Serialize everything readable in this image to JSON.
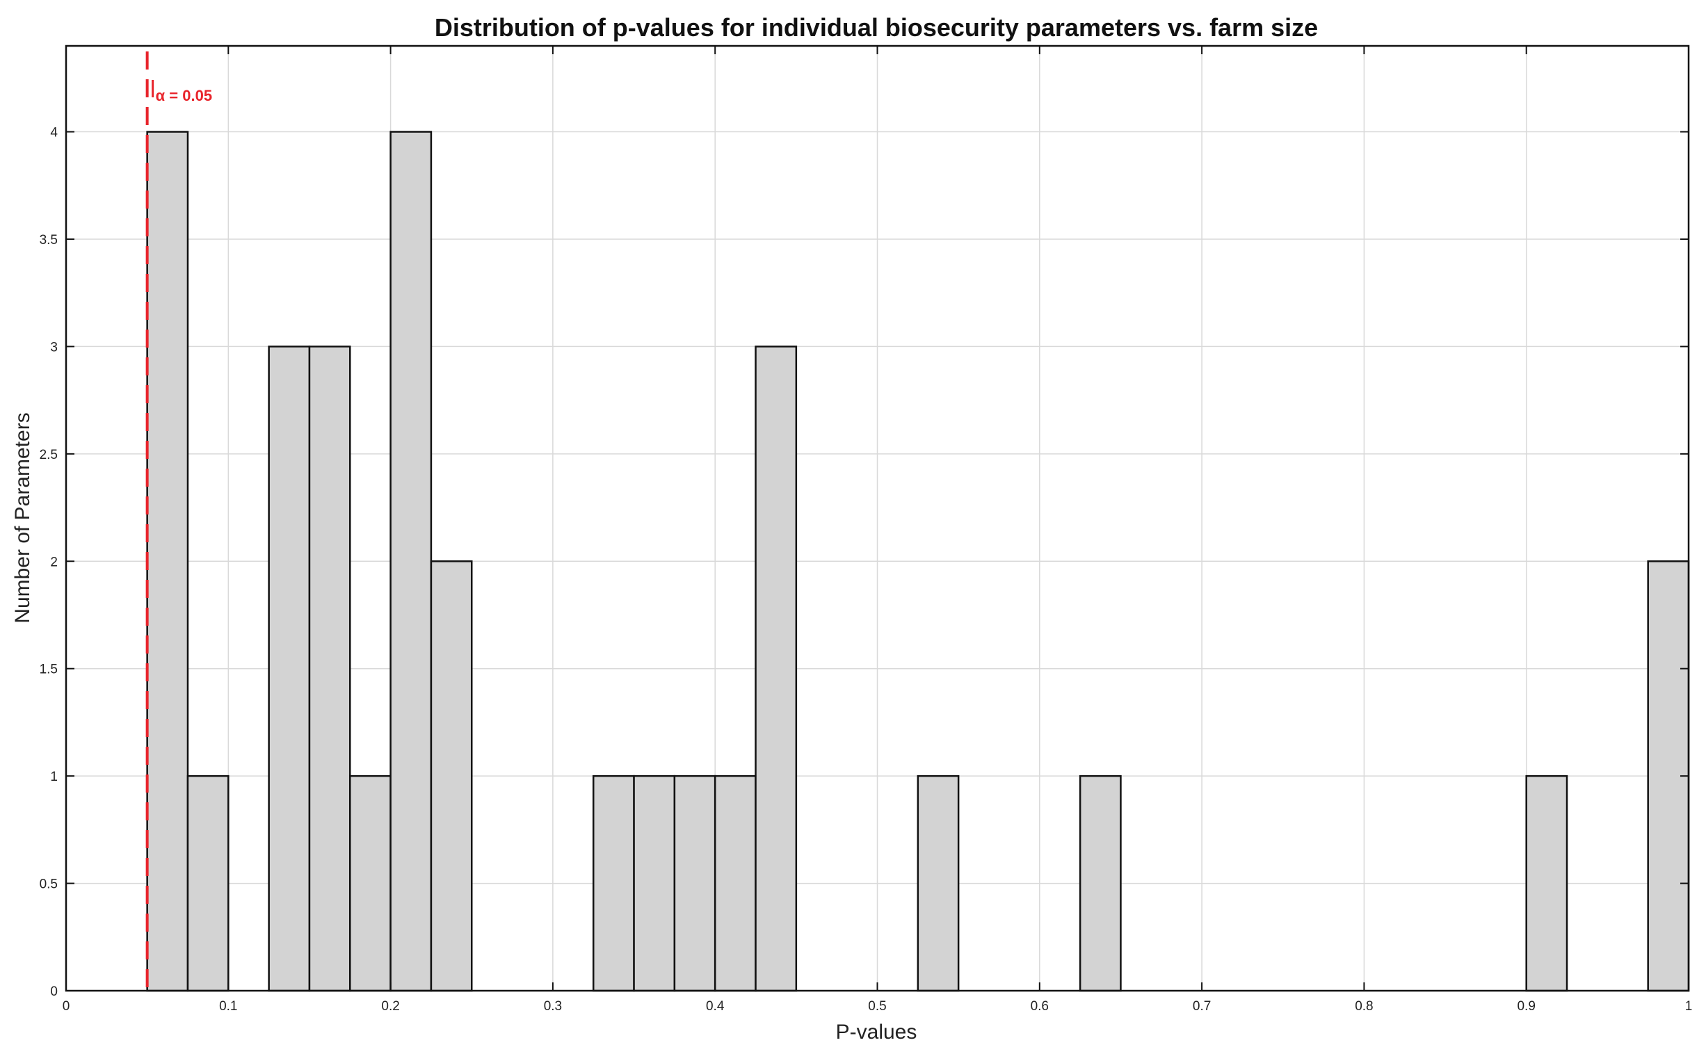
{
  "chart_data": {
    "type": "bar",
    "title": "Distribution of p-values for individual biosecurity parameters vs. farm size",
    "xlabel": "P-values",
    "ylabel": "Number of Parameters",
    "xlim": [
      0,
      1
    ],
    "ylim": [
      0,
      4.4
    ],
    "grid": true,
    "bin_width": 0.025,
    "bar_color": "#d3d3d3",
    "edge_color": "#111111",
    "x_ticks": [
      "0",
      "0.1",
      "0.2",
      "0.3",
      "0.4",
      "0.5",
      "0.6",
      "0.7",
      "0.8",
      "0.9",
      "1"
    ],
    "y_ticks": [
      "0",
      "0.5",
      "1",
      "1.5",
      "2",
      "2.5",
      "3",
      "3.5",
      "4"
    ],
    "bins": [
      {
        "start": 0.05,
        "end": 0.075,
        "count": 4
      },
      {
        "start": 0.075,
        "end": 0.1,
        "count": 1
      },
      {
        "start": 0.125,
        "end": 0.15,
        "count": 3
      },
      {
        "start": 0.15,
        "end": 0.175,
        "count": 3
      },
      {
        "start": 0.175,
        "end": 0.2,
        "count": 1
      },
      {
        "start": 0.2,
        "end": 0.225,
        "count": 4
      },
      {
        "start": 0.225,
        "end": 0.25,
        "count": 2
      },
      {
        "start": 0.325,
        "end": 0.35,
        "count": 1
      },
      {
        "start": 0.35,
        "end": 0.375,
        "count": 1
      },
      {
        "start": 0.375,
        "end": 0.4,
        "count": 1
      },
      {
        "start": 0.4,
        "end": 0.425,
        "count": 1
      },
      {
        "start": 0.425,
        "end": 0.45,
        "count": 3
      },
      {
        "start": 0.525,
        "end": 0.55,
        "count": 1
      },
      {
        "start": 0.625,
        "end": 0.65,
        "count": 1
      },
      {
        "start": 0.9,
        "end": 0.925,
        "count": 1
      },
      {
        "start": 0.975,
        "end": 1.0,
        "count": 2
      }
    ],
    "threshold": {
      "x": 0.05,
      "label": "α = 0.05",
      "color": "#e8242b"
    }
  }
}
